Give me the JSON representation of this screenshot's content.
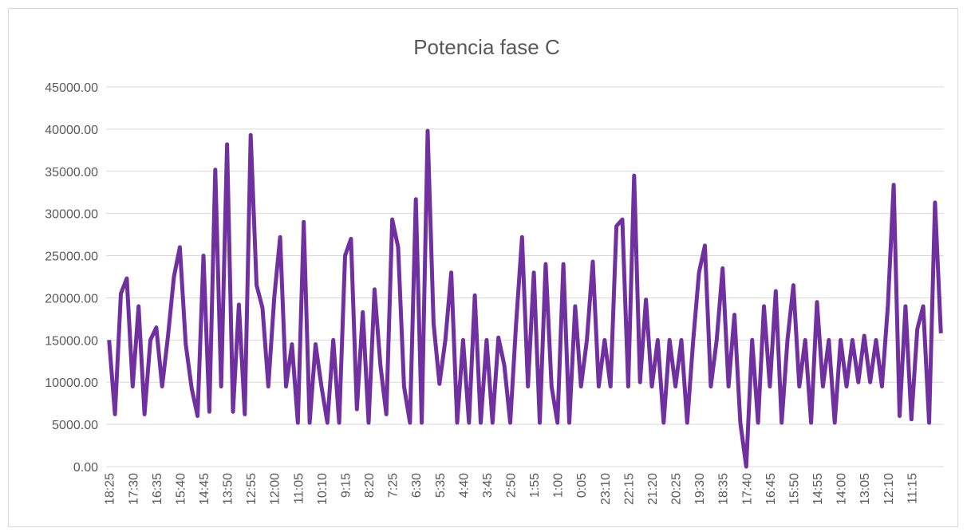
{
  "chart_data": {
    "type": "line",
    "title": "Potencia fase C",
    "color": "#7030a0",
    "grid": true,
    "categories": [
      "18:25",
      null,
      null,
      null,
      "17:30",
      null,
      null,
      null,
      "16:35",
      null,
      null,
      null,
      "15:40",
      null,
      null,
      null,
      "14:45",
      null,
      null,
      null,
      "13:50",
      null,
      null,
      null,
      "12:55",
      null,
      null,
      null,
      "12:00",
      null,
      null,
      null,
      "11:05",
      null,
      null,
      null,
      "10:10",
      null,
      null,
      null,
      "9:15",
      null,
      null,
      null,
      "8:20",
      null,
      null,
      null,
      "7:25",
      null,
      null,
      null,
      "6:30",
      null,
      null,
      null,
      "5:35",
      null,
      null,
      null,
      "4:40",
      null,
      null,
      null,
      "3:45",
      null,
      null,
      null,
      "2:50",
      null,
      null,
      null,
      "1:55",
      null,
      null,
      null,
      "1:00",
      null,
      null,
      null,
      "0:05",
      null,
      null,
      null,
      "23:10",
      null,
      null,
      null,
      "22:15",
      null,
      null,
      null,
      "21:20",
      null,
      null,
      null,
      "20:25",
      null,
      null,
      null,
      "19:30",
      null,
      null,
      null,
      "18:35",
      null,
      null,
      null,
      "17:40",
      null,
      null,
      null,
      "16:45",
      null,
      null,
      null,
      "15:50",
      null,
      null,
      null,
      "14:55",
      null,
      null,
      null,
      "14:00",
      null,
      null,
      null,
      "13:05",
      null,
      null,
      null,
      "12:10",
      null,
      null,
      null,
      "11:15",
      null,
      null,
      null,
      null,
      null
    ],
    "values": [
      15000,
      6200,
      20500,
      22300,
      9500,
      19000,
      6200,
      15000,
      16500,
      9500,
      15500,
      22500,
      26000,
      14500,
      9300,
      6000,
      25000,
      6500,
      35200,
      9500,
      38200,
      6500,
      19200,
      6200,
      39300,
      21500,
      18800,
      9500,
      20000,
      27200,
      9500,
      14500,
      5200,
      29000,
      5200,
      14500,
      9500,
      5200,
      15000,
      5200,
      25000,
      27000,
      6800,
      18300,
      5200,
      21000,
      12000,
      6200,
      29300,
      26000,
      9500,
      5200,
      31700,
      5200,
      39800,
      17000,
      9800,
      15000,
      23000,
      5200,
      15000,
      5200,
      20300,
      5200,
      15000,
      5200,
      15300,
      12000,
      5200,
      17000,
      27200,
      9500,
      23000,
      5200,
      24000,
      9500,
      5200,
      24000,
      5200,
      19000,
      9500,
      15000,
      24300,
      9500,
      15000,
      9500,
      28500,
      29300,
      9500,
      34500,
      10000,
      19800,
      9500,
      15000,
      5200,
      15000,
      9500,
      15000,
      5200,
      14800,
      23000,
      26200,
      9500,
      15000,
      23500,
      9500,
      18000,
      5200,
      0,
      15000,
      5200,
      19000,
      9500,
      20800,
      5200,
      15000,
      21500,
      9500,
      15000,
      5200,
      19500,
      9500,
      15000,
      5200,
      15000,
      9500,
      15000,
      10000,
      15500,
      10000,
      15000,
      9500,
      19000,
      33400,
      6000,
      19000,
      5600,
      16300,
      19000,
      5200,
      31300,
      15800
    ],
    "ylim": [
      0,
      45000
    ],
    "yticks": [
      {
        "value": 0,
        "label": "0.00"
      },
      {
        "value": 5000,
        "label": "5000.00"
      },
      {
        "value": 10000,
        "label": "10000.00"
      },
      {
        "value": 15000,
        "label": "15000.00"
      },
      {
        "value": 20000,
        "label": "20000.00"
      },
      {
        "value": 25000,
        "label": "25000.00"
      },
      {
        "value": 30000,
        "label": "30000.00"
      },
      {
        "value": 35000,
        "label": "35000.00"
      },
      {
        "value": 40000,
        "label": "40000.00"
      },
      {
        "value": 45000,
        "label": "45000.00"
      }
    ]
  }
}
